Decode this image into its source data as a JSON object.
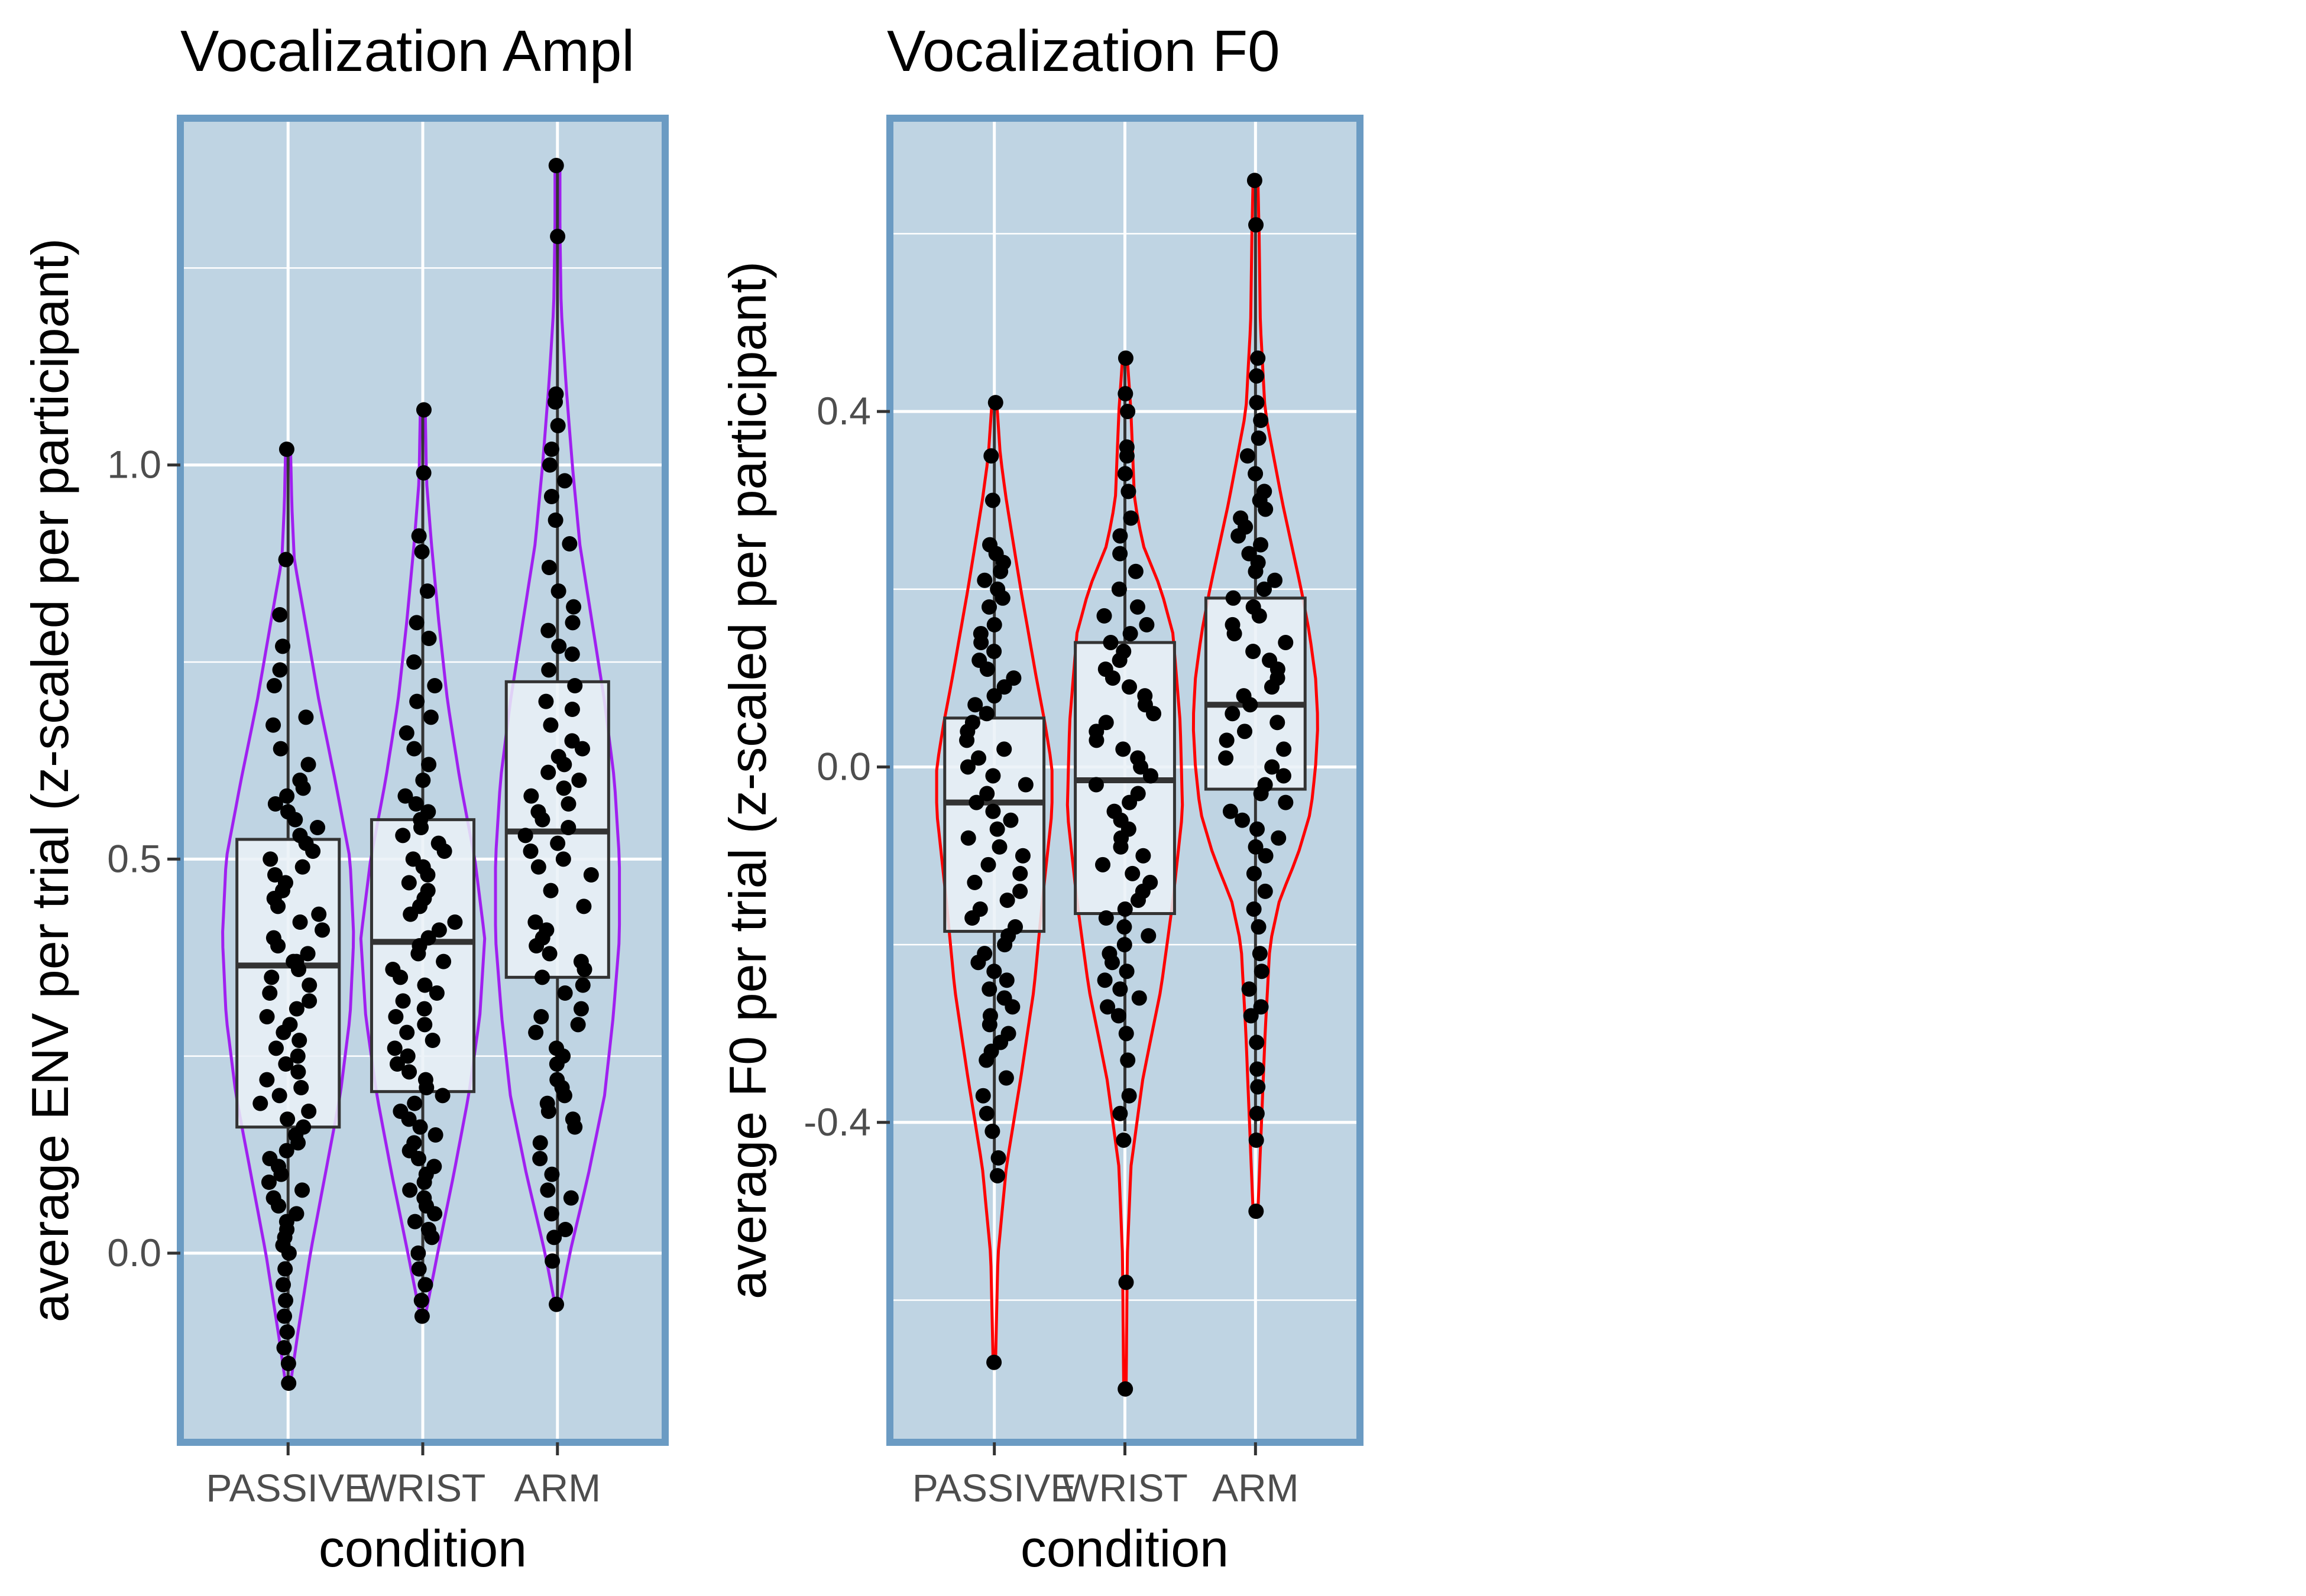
{
  "chart_data": [
    {
      "type": "violin",
      "title": "Vocalization Ampl",
      "xlabel": "condition",
      "ylabel": "average ENV per trial (z-scaled per participant)",
      "categories": [
        "PASSIVE",
        "WRIST",
        "ARM"
      ],
      "ylim": [
        -0.24,
        1.44
      ],
      "yticks": [
        0.0,
        0.5,
        1.0
      ],
      "ytick_labels": [
        "0.0",
        "0.5",
        "1.0"
      ],
      "grid": true,
      "panel_background": "#bfd4e3",
      "panel_border": "#6b9bc3",
      "violin_color": "#a020f0",
      "box_fill": "#eaf1f7",
      "point_color": "#000000",
      "boxes": [
        {
          "category": "PASSIVE",
          "q1": 0.16,
          "median": 0.365,
          "q3": 0.525,
          "whisker_low": -0.16,
          "whisker_high": 1.02
        },
        {
          "category": "WRIST",
          "q1": 0.205,
          "median": 0.395,
          "q3": 0.55,
          "whisker_low": -0.08,
          "whisker_high": 1.07
        },
        {
          "category": "ARM",
          "q1": 0.35,
          "median": 0.535,
          "q3": 0.725,
          "whisker_low": -0.065,
          "whisker_high": 1.38
        }
      ],
      "violins": [
        {
          "category": "PASSIVE",
          "min": -0.165,
          "max": 1.02,
          "shape": [
            [
              -0.165,
              0.02
            ],
            [
              -0.1,
              0.08
            ],
            [
              0.0,
              0.18
            ],
            [
              0.1,
              0.3
            ],
            [
              0.2,
              0.42
            ],
            [
              0.3,
              0.5
            ],
            [
              0.4,
              0.53
            ],
            [
              0.5,
              0.5
            ],
            [
              0.6,
              0.38
            ],
            [
              0.7,
              0.25
            ],
            [
              0.8,
              0.14
            ],
            [
              0.88,
              0.05
            ],
            [
              0.95,
              0.03
            ],
            [
              1.02,
              0.02
            ]
          ]
        },
        {
          "category": "WRIST",
          "min": -0.08,
          "max": 1.07,
          "shape": [
            [
              -0.08,
              0.02
            ],
            [
              0.0,
              0.12
            ],
            [
              0.1,
              0.25
            ],
            [
              0.2,
              0.37
            ],
            [
              0.3,
              0.46
            ],
            [
              0.4,
              0.5
            ],
            [
              0.5,
              0.42
            ],
            [
              0.6,
              0.3
            ],
            [
              0.7,
              0.2
            ],
            [
              0.8,
              0.13
            ],
            [
              0.9,
              0.07
            ],
            [
              0.98,
              0.03
            ],
            [
              1.07,
              0.02
            ]
          ]
        },
        {
          "category": "ARM",
          "min": -0.065,
          "max": 1.38,
          "shape": [
            [
              -0.065,
              0.02
            ],
            [
              0.0,
              0.1
            ],
            [
              0.1,
              0.25
            ],
            [
              0.2,
              0.38
            ],
            [
              0.3,
              0.45
            ],
            [
              0.4,
              0.5
            ],
            [
              0.5,
              0.5
            ],
            [
              0.6,
              0.46
            ],
            [
              0.7,
              0.38
            ],
            [
              0.8,
              0.28
            ],
            [
              0.9,
              0.18
            ],
            [
              1.0,
              0.12
            ],
            [
              1.1,
              0.07
            ],
            [
              1.2,
              0.03
            ],
            [
              1.3,
              0.02
            ],
            [
              1.38,
              0.02
            ]
          ]
        }
      ],
      "points": [
        {
          "category": "PASSIVE",
          "values": [
            1.02,
            0.88,
            0.81,
            0.77,
            0.74,
            0.72,
            0.68,
            0.67,
            0.64,
            0.62,
            0.6,
            0.59,
            0.58,
            0.57,
            0.56,
            0.55,
            0.54,
            0.53,
            0.52,
            0.51,
            0.5,
            0.49,
            0.48,
            0.47,
            0.46,
            0.45,
            0.44,
            0.43,
            0.42,
            0.41,
            0.4,
            0.39,
            0.38,
            0.37,
            0.37,
            0.36,
            0.35,
            0.34,
            0.33,
            0.32,
            0.31,
            0.3,
            0.29,
            0.28,
            0.27,
            0.26,
            0.25,
            0.24,
            0.23,
            0.22,
            0.21,
            0.2,
            0.19,
            0.18,
            0.17,
            0.16,
            0.15,
            0.14,
            0.13,
            0.12,
            0.11,
            0.1,
            0.09,
            0.08,
            0.07,
            0.06,
            0.05,
            0.04,
            0.03,
            0.02,
            0.01,
            0.0,
            -0.02,
            -0.04,
            -0.06,
            -0.08,
            -0.1,
            -0.12,
            -0.14,
            -0.165
          ]
        },
        {
          "category": "WRIST",
          "values": [
            1.07,
            0.99,
            0.91,
            0.89,
            0.84,
            0.8,
            0.78,
            0.75,
            0.72,
            0.7,
            0.68,
            0.66,
            0.64,
            0.62,
            0.6,
            0.58,
            0.57,
            0.56,
            0.55,
            0.54,
            0.53,
            0.52,
            0.51,
            0.5,
            0.49,
            0.48,
            0.47,
            0.46,
            0.45,
            0.44,
            0.43,
            0.42,
            0.41,
            0.4,
            0.39,
            0.38,
            0.37,
            0.36,
            0.35,
            0.34,
            0.33,
            0.32,
            0.31,
            0.3,
            0.29,
            0.28,
            0.27,
            0.26,
            0.25,
            0.24,
            0.23,
            0.22,
            0.21,
            0.2,
            0.19,
            0.18,
            0.17,
            0.16,
            0.15,
            0.14,
            0.13,
            0.12,
            0.11,
            0.1,
            0.09,
            0.08,
            0.07,
            0.06,
            0.05,
            0.04,
            0.03,
            0.02,
            0.0,
            -0.02,
            -0.04,
            -0.06,
            -0.08
          ]
        },
        {
          "category": "ARM",
          "values": [
            1.38,
            1.29,
            1.09,
            1.08,
            1.05,
            1.02,
            1.0,
            0.98,
            0.96,
            0.93,
            0.9,
            0.87,
            0.84,
            0.82,
            0.8,
            0.79,
            0.77,
            0.76,
            0.74,
            0.72,
            0.7,
            0.69,
            0.67,
            0.65,
            0.64,
            0.63,
            0.62,
            0.61,
            0.6,
            0.59,
            0.58,
            0.57,
            0.56,
            0.55,
            0.54,
            0.53,
            0.52,
            0.51,
            0.5,
            0.49,
            0.48,
            0.46,
            0.44,
            0.42,
            0.41,
            0.4,
            0.39,
            0.38,
            0.37,
            0.36,
            0.35,
            0.34,
            0.33,
            0.31,
            0.3,
            0.29,
            0.28,
            0.26,
            0.25,
            0.24,
            0.22,
            0.21,
            0.2,
            0.19,
            0.18,
            0.17,
            0.16,
            0.14,
            0.12,
            0.1,
            0.08,
            0.07,
            0.05,
            0.03,
            0.02,
            -0.01,
            -0.065
          ]
        }
      ]
    },
    {
      "type": "violin",
      "title": "Vocalization F0",
      "xlabel": "condition",
      "ylabel": "average F0 per trial (z-scaled per participant)",
      "categories": [
        "PASSIVE",
        "WRIST",
        "ARM"
      ],
      "ylim": [
        -0.76,
        0.73
      ],
      "yticks": [
        -0.4,
        0.0,
        0.4
      ],
      "ytick_labels": [
        "-0.4",
        "0.0",
        "0.4"
      ],
      "grid": true,
      "panel_background": "#bfd4e3",
      "panel_border": "#6b9bc3",
      "violin_color": "#ff0000",
      "box_fill": "#eaf1f7",
      "point_color": "#000000",
      "boxes": [
        {
          "category": "PASSIVE",
          "q1": -0.185,
          "median": -0.04,
          "q3": 0.055,
          "whisker_low": -0.46,
          "whisker_high": 0.41
        },
        {
          "category": "WRIST",
          "q1": -0.165,
          "median": -0.015,
          "q3": 0.14,
          "whisker_low": -0.41,
          "whisker_high": 0.46
        },
        {
          "category": "ARM",
          "q1": -0.025,
          "median": 0.07,
          "q3": 0.19,
          "whisker_low": -0.42,
          "whisker_high": 0.66
        }
      ],
      "violins": [
        {
          "category": "PASSIVE",
          "min": -0.67,
          "max": 0.41,
          "shape": [
            [
              -0.67,
              0.01
            ],
            [
              -0.55,
              0.03
            ],
            [
              -0.45,
              0.1
            ],
            [
              -0.35,
              0.22
            ],
            [
              -0.25,
              0.33
            ],
            [
              -0.15,
              0.4
            ],
            [
              -0.05,
              0.48
            ],
            [
              0.0,
              0.48
            ],
            [
              0.05,
              0.42
            ],
            [
              0.1,
              0.35
            ],
            [
              0.2,
              0.22
            ],
            [
              0.3,
              0.1
            ],
            [
              0.35,
              0.05
            ],
            [
              0.41,
              0.02
            ]
          ]
        },
        {
          "category": "WRIST",
          "min": -0.7,
          "max": 0.46,
          "shape": [
            [
              -0.7,
              0.01
            ],
            [
              -0.55,
              0.02
            ],
            [
              -0.45,
              0.05
            ],
            [
              -0.35,
              0.15
            ],
            [
              -0.25,
              0.3
            ],
            [
              -0.15,
              0.4
            ],
            [
              -0.05,
              0.48
            ],
            [
              0.05,
              0.46
            ],
            [
              0.15,
              0.4
            ],
            [
              0.2,
              0.3
            ],
            [
              0.25,
              0.15
            ],
            [
              0.3,
              0.08
            ],
            [
              0.4,
              0.05
            ],
            [
              0.46,
              0.02
            ]
          ]
        },
        {
          "category": "ARM",
          "min": -0.5,
          "max": 0.66,
          "shape": [
            [
              -0.5,
              0.02
            ],
            [
              -0.4,
              0.05
            ],
            [
              -0.3,
              0.08
            ],
            [
              -0.2,
              0.12
            ],
            [
              -0.15,
              0.2
            ],
            [
              -0.1,
              0.35
            ],
            [
              -0.05,
              0.46
            ],
            [
              0.0,
              0.5
            ],
            [
              0.05,
              0.52
            ],
            [
              0.1,
              0.5
            ],
            [
              0.15,
              0.45
            ],
            [
              0.2,
              0.38
            ],
            [
              0.3,
              0.22
            ],
            [
              0.4,
              0.08
            ],
            [
              0.5,
              0.04
            ],
            [
              0.6,
              0.03
            ],
            [
              0.66,
              0.02
            ]
          ]
        }
      ],
      "points": [
        {
          "category": "PASSIVE",
          "values": [
            0.41,
            0.35,
            0.3,
            0.25,
            0.24,
            0.23,
            0.22,
            0.21,
            0.2,
            0.19,
            0.18,
            0.16,
            0.15,
            0.14,
            0.13,
            0.12,
            0.11,
            0.1,
            0.09,
            0.08,
            0.07,
            0.06,
            0.05,
            0.04,
            0.03,
            0.02,
            0.01,
            0.0,
            -0.01,
            -0.02,
            -0.03,
            -0.04,
            -0.05,
            -0.06,
            -0.07,
            -0.08,
            -0.09,
            -0.1,
            -0.11,
            -0.12,
            -0.13,
            -0.14,
            -0.15,
            -0.16,
            -0.17,
            -0.18,
            -0.19,
            -0.2,
            -0.21,
            -0.22,
            -0.23,
            -0.24,
            -0.25,
            -0.26,
            -0.27,
            -0.28,
            -0.29,
            -0.3,
            -0.31,
            -0.32,
            -0.33,
            -0.35,
            -0.37,
            -0.39,
            -0.41,
            -0.44,
            -0.46,
            -0.67
          ]
        },
        {
          "category": "WRIST",
          "values": [
            0.46,
            0.42,
            0.4,
            0.36,
            0.35,
            0.33,
            0.31,
            0.28,
            0.26,
            0.24,
            0.22,
            0.2,
            0.18,
            0.17,
            0.16,
            0.15,
            0.14,
            0.13,
            0.12,
            0.11,
            0.1,
            0.09,
            0.08,
            0.07,
            0.06,
            0.05,
            0.04,
            0.03,
            0.02,
            0.01,
            0.0,
            -0.01,
            -0.02,
            -0.03,
            -0.04,
            -0.05,
            -0.06,
            -0.07,
            -0.08,
            -0.09,
            -0.1,
            -0.11,
            -0.12,
            -0.13,
            -0.14,
            -0.15,
            -0.16,
            -0.17,
            -0.18,
            -0.19,
            -0.2,
            -0.21,
            -0.22,
            -0.23,
            -0.24,
            -0.25,
            -0.26,
            -0.27,
            -0.28,
            -0.3,
            -0.33,
            -0.37,
            -0.39,
            -0.42,
            -0.58,
            -0.7
          ]
        },
        {
          "category": "ARM",
          "values": [
            0.66,
            0.61,
            0.46,
            0.44,
            0.41,
            0.39,
            0.37,
            0.35,
            0.33,
            0.31,
            0.3,
            0.29,
            0.28,
            0.27,
            0.26,
            0.25,
            0.24,
            0.23,
            0.22,
            0.21,
            0.2,
            0.19,
            0.18,
            0.17,
            0.16,
            0.15,
            0.14,
            0.13,
            0.12,
            0.11,
            0.1,
            0.09,
            0.08,
            0.07,
            0.06,
            0.05,
            0.04,
            0.03,
            0.02,
            0.01,
            0.0,
            -0.01,
            -0.02,
            -0.03,
            -0.04,
            -0.05,
            -0.06,
            -0.07,
            -0.08,
            -0.09,
            -0.1,
            -0.12,
            -0.14,
            -0.16,
            -0.18,
            -0.21,
            -0.23,
            -0.25,
            -0.27,
            -0.28,
            -0.31,
            -0.34,
            -0.36,
            -0.39,
            -0.42,
            -0.5
          ]
        }
      ]
    }
  ]
}
